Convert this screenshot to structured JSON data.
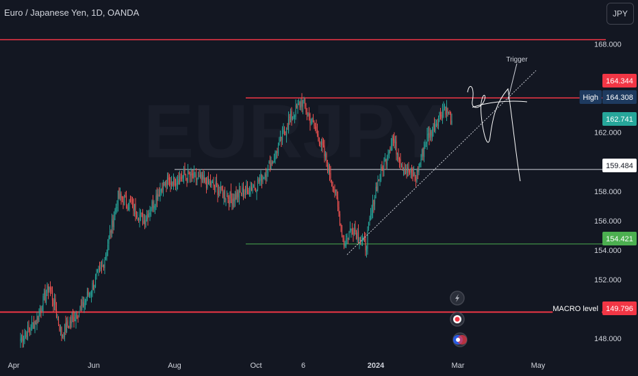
{
  "header": {
    "title": "Euro / Japanese Yen, 1D, OANDA",
    "currency_button": "JPY"
  },
  "colors": {
    "background": "#131722",
    "up_candle": "#26a69a",
    "down_candle": "#ef5350",
    "resistance_line": "#f23645",
    "support_line": "#4caf50",
    "high_tag": "#1e3a5f",
    "current_tag": "#26a69a",
    "red_tag": "#f23645",
    "green_tag": "#4caf50"
  },
  "chart_data": {
    "type": "candlestick",
    "symbol": "EURJPY",
    "timeframe": "1D",
    "x_tick_labels": [
      "Apr",
      "Jun",
      "Aug",
      "Oct",
      "6",
      "2024",
      "Mar",
      "May"
    ],
    "y_tick_labels": [
      "148.000",
      "152.000",
      "154.000",
      "156.000",
      "158.000",
      "162.000",
      "168.000"
    ],
    "ylim": [
      147.5,
      169.6
    ],
    "price_tags": [
      {
        "label": "",
        "value": "164.344",
        "kind": "red"
      },
      {
        "label": "High",
        "value": "164.308",
        "kind": "high"
      },
      {
        "label": "",
        "value": "162.741",
        "kind": "current"
      },
      {
        "label": "",
        "value": "159.484",
        "kind": "white"
      },
      {
        "label": "",
        "value": "154.421",
        "kind": "green"
      },
      {
        "label": "MACRO level",
        "value": "149.796",
        "kind": "red"
      }
    ],
    "horizontal_levels": [
      {
        "price": 168.3,
        "color": "#f23645",
        "from": "start",
        "width": 1.5
      },
      {
        "price": 164.344,
        "color": "#f23645",
        "from": "Oct",
        "width": 1.5
      },
      {
        "price": 159.484,
        "color": "#d1d4dc",
        "from": "Aug",
        "width": 1
      },
      {
        "price": 154.421,
        "color": "#4caf50",
        "from": "Oct",
        "width": 1
      },
      {
        "price": 149.796,
        "color": "#f23645",
        "from": "start",
        "width": 2
      }
    ],
    "trendline": {
      "from_price": 153.7,
      "to_price": 166.2
    },
    "annotation": {
      "text": "Trigger",
      "price": 166.9
    },
    "waypoints": [
      [
        0,
        148.0
      ],
      [
        15,
        149.2
      ],
      [
        28,
        151.6
      ],
      [
        40,
        148.3
      ],
      [
        60,
        150.2
      ],
      [
        80,
        152.9
      ],
      [
        95,
        157.6
      ],
      [
        108,
        157.1
      ],
      [
        120,
        156.0
      ],
      [
        138,
        158.4
      ],
      [
        160,
        159.1
      ],
      [
        185,
        158.5
      ],
      [
        205,
        157.5
      ],
      [
        230,
        158.5
      ],
      [
        245,
        160.0
      ],
      [
        262,
        162.9
      ],
      [
        274,
        164.1
      ],
      [
        290,
        161.8
      ],
      [
        305,
        158.4
      ],
      [
        315,
        154.5
      ],
      [
        323,
        155.6
      ],
      [
        336,
        154.3
      ],
      [
        346,
        158.2
      ],
      [
        362,
        161.6
      ],
      [
        374,
        159.5
      ],
      [
        385,
        159.0
      ],
      [
        395,
        161.5
      ],
      [
        413,
        163.8
      ],
      [
        420,
        162.8
      ]
    ]
  }
}
